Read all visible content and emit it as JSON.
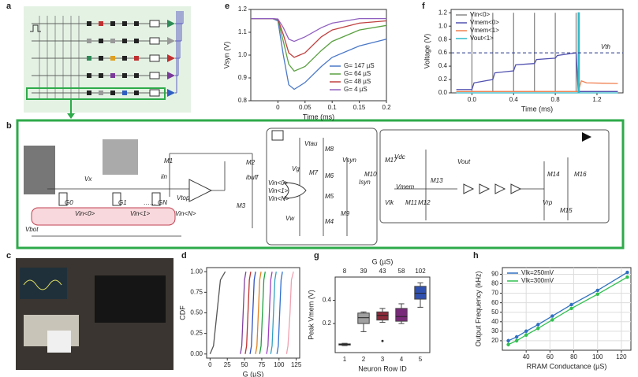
{
  "panels": [
    "a",
    "b",
    "c",
    "d",
    "e",
    "f",
    "g",
    "h"
  ],
  "circuit_labels": [
    "M1",
    "M2",
    "M3",
    "iin",
    "ibuff",
    "Vx",
    "Vtop",
    "Vbot",
    "G0",
    "G1",
    "GN",
    "Vin<0>",
    "Vin<1>",
    "Vin<N>",
    "……",
    "Vin<0>",
    "Vin<1>",
    "Vin<N>",
    "Vtau",
    "Vg",
    "Vsyn",
    "Isyn",
    "Vw",
    "M8",
    "M7",
    "M6",
    "M5",
    "M4",
    "M9",
    "M10",
    "Vdc",
    "M17",
    "Vmem",
    "M13",
    "M11",
    "M12",
    "Vlk",
    "Vout",
    "M14",
    "M16",
    "M15",
    "Vrp"
  ],
  "chart_data": [
    {
      "type": "line",
      "xlabel": "Time (ms)",
      "ylabel": "Vsyn (V)",
      "legend": "lower right",
      "xlim": [
        -0.05,
        0.2
      ],
      "xticks": [
        0,
        0.05,
        0.1,
        0.15,
        0.2
      ],
      "ylim": [
        0.8,
        1.2
      ],
      "yticks": [
        0.8,
        0.9,
        {
          "value": 1,
          "label": "1.0"
        },
        1.1,
        1.2
      ],
      "x": [
        -0.05,
        -0.03,
        -0.01,
        0,
        0.01,
        0.02,
        0.03,
        0.05,
        0.08,
        0.1,
        0.15,
        0.2
      ],
      "series": [
        {
          "name": "G= 147 µS",
          "color": "#4a78c8",
          "values": [
            1.16,
            1.16,
            1.16,
            1.15,
            1.0,
            0.87,
            0.85,
            0.88,
            0.95,
            0.99,
            1.04,
            1.07
          ]
        },
        {
          "name": "G= 64 µS",
          "color": "#5aa040",
          "values": [
            1.16,
            1.16,
            1.16,
            1.155,
            1.06,
            0.96,
            0.93,
            0.95,
            1.02,
            1.06,
            1.11,
            1.13
          ]
        },
        {
          "name": "G= 48 µS",
          "color": "#c04040",
          "values": [
            1.16,
            1.16,
            1.16,
            1.157,
            1.09,
            1.01,
            0.99,
            1.01,
            1.08,
            1.11,
            1.14,
            1.15
          ]
        },
        {
          "name": "G= 4 µS",
          "color": "#9060c0",
          "values": [
            1.16,
            1.16,
            1.16,
            1.158,
            1.12,
            1.07,
            1.06,
            1.08,
            1.12,
            1.14,
            1.16,
            1.16
          ]
        }
      ]
    },
    {
      "type": "line",
      "xlabel": "Time (ms)",
      "ylabel": "Voltage (V)",
      "legend": "upper left",
      "xlim": [
        -0.2,
        1.45
      ],
      "xticks": [
        {
          "value": 0,
          "label": "0.0"
        },
        0.4,
        0.8,
        1.2
      ],
      "ylim": [
        0,
        1.25
      ],
      "yticks": [
        {
          "value": 0,
          "label": "0.0"
        },
        0.2,
        0.4,
        0.6,
        0.8,
        {
          "value": 1,
          "label": "1.0"
        },
        1.2
      ],
      "threshold": 0.6,
      "threshold_label": "Vth",
      "series": [
        {
          "name": "Vin<0>",
          "color": "#888888",
          "x": [
            -0.15,
            0,
            0,
            0,
            0.2,
            0.2,
            0.2,
            0.4,
            0.4,
            0.4,
            0.6,
            0.6,
            0.6,
            0.8,
            0.8,
            0.8,
            1.0,
            1.0,
            1.0,
            1.4
          ],
          "values": [
            0.02,
            0.02,
            1.2,
            0.02,
            0.02,
            1.2,
            0.02,
            0.02,
            1.2,
            0.02,
            0.02,
            1.2,
            0.02,
            0.02,
            1.2,
            0.02,
            0.02,
            1.2,
            0.02,
            0.02
          ]
        },
        {
          "name": "Vmem<0>",
          "color": "#5050b0",
          "x": [
            -0.15,
            0,
            0.02,
            0.2,
            0.22,
            0.4,
            0.42,
            0.6,
            0.62,
            0.8,
            0.82,
            1.0,
            1.02,
            1.05,
            1.4
          ],
          "values": [
            0.05,
            0.05,
            0.15,
            0.2,
            0.3,
            0.33,
            0.42,
            0.44,
            0.5,
            0.52,
            0.56,
            0.6,
            0.02,
            0.02,
            0.02
          ]
        },
        {
          "name": "Vmem<1>",
          "color": "#f08050",
          "x": [
            -0.15,
            1.02,
            1.05,
            1.1,
            1.4
          ],
          "values": [
            0.02,
            0.02,
            0.18,
            0.15,
            0.14
          ]
        },
        {
          "name": "Vout<1>",
          "color": "#30b8c8",
          "x": [
            -0.15,
            1.02,
            1.02,
            1.03,
            1.03,
            1.4
          ],
          "values": [
            0,
            0,
            1.2,
            1.2,
            0,
            0
          ]
        }
      ]
    },
    {
      "type": "line",
      "xlabel": "G (µS)",
      "ylabel": "CDF",
      "xlim": [
        -5,
        130
      ],
      "xticks": [
        0,
        25,
        50,
        75,
        100,
        125
      ],
      "ylim": [
        -0.05,
        1.05
      ],
      "yticks": [
        {
          "value": 0,
          "label": "0.00"
        },
        {
          "value": 0.25,
          "label": "0.25"
        },
        {
          "value": 0.5,
          "label": "0.50"
        },
        {
          "value": 0.75,
          "label": "0.75"
        },
        {
          "value": 1,
          "label": "1.00"
        }
      ],
      "series": [
        {
          "color": "#555555",
          "x": [
            0,
            5,
            10,
            15,
            22
          ],
          "values": [
            0,
            0.1,
            0.5,
            0.9,
            1
          ]
        },
        {
          "color": "#8040a0",
          "x": [
            44,
            46,
            48,
            50,
            52
          ],
          "values": [
            0,
            0.1,
            0.5,
            0.9,
            1
          ]
        },
        {
          "color": "#c03030",
          "x": [
            51,
            53,
            55,
            57,
            59
          ],
          "values": [
            0,
            0.1,
            0.5,
            0.9,
            1
          ]
        },
        {
          "color": "#3050c0",
          "x": [
            58,
            60,
            62,
            64,
            66
          ],
          "values": [
            0,
            0.1,
            0.5,
            0.9,
            1
          ]
        },
        {
          "color": "#e08020",
          "x": [
            66,
            68,
            70,
            72,
            74
          ],
          "values": [
            0,
            0.1,
            0.5,
            0.9,
            1
          ]
        },
        {
          "color": "#20a040",
          "x": [
            72,
            74,
            76,
            78,
            80
          ],
          "values": [
            0,
            0.1,
            0.5,
            0.9,
            1
          ]
        },
        {
          "color": "#a040c0",
          "x": [
            82,
            84,
            86,
            88,
            90
          ],
          "values": [
            0,
            0.1,
            0.5,
            0.9,
            1
          ]
        },
        {
          "color": "#30a0c0",
          "x": [
            88,
            90,
            92,
            94,
            96
          ],
          "values": [
            0,
            0.1,
            0.5,
            0.9,
            1
          ]
        },
        {
          "color": "#3070d0",
          "x": [
            97,
            99,
            101,
            103,
            105
          ],
          "values": [
            0,
            0.1,
            0.5,
            0.9,
            1
          ]
        },
        {
          "color": "#f0a0b0",
          "x": [
            111,
            113,
            116,
            118,
            121
          ],
          "values": [
            0,
            0.1,
            0.5,
            0.9,
            1
          ]
        }
      ]
    },
    {
      "type": "box",
      "xlabel": "Neuron Row ID",
      "ylabel": "Peak Vmem (V)",
      "top_label": "G (µS)",
      "categories": [
        "1",
        "2",
        "3",
        "4",
        "5"
      ],
      "top_ticks": [
        8,
        39,
        43,
        58,
        102
      ],
      "ylim": [
        -0.05,
        0.6
      ],
      "yticks": [
        0.2,
        0.4
      ],
      "boxes": [
        {
          "color": "#222222",
          "whislo": 0.01,
          "q1": 0.015,
          "med": 0.02,
          "q3": 0.025,
          "whishi": 0.03,
          "fliers": []
        },
        {
          "color": "#a0a0a0",
          "whislo": 0.13,
          "q1": 0.2,
          "med": 0.25,
          "q3": 0.29,
          "whishi": 0.3,
          "fliers": []
        },
        {
          "color": "#8b2a3a",
          "whislo": 0.21,
          "q1": 0.23,
          "med": 0.27,
          "q3": 0.3,
          "whishi": 0.33,
          "fliers": [
            0.05
          ]
        },
        {
          "color": "#7a2a7a",
          "whislo": 0.2,
          "q1": 0.22,
          "med": 0.26,
          "q3": 0.33,
          "whishi": 0.37,
          "fliers": []
        },
        {
          "color": "#3050b0",
          "whislo": 0.34,
          "q1": 0.41,
          "med": 0.46,
          "q3": 0.52,
          "whishi": 0.55,
          "fliers": []
        }
      ]
    },
    {
      "type": "line",
      "markers": true,
      "grid": true,
      "xlabel": "RRAM Conductance (µS)",
      "ylabel": "Output Frequency (kHz)",
      "legend": "upper left",
      "xlim": [
        20,
        128
      ],
      "xticks": [
        40,
        60,
        80,
        100,
        120
      ],
      "ylim": [
        10,
        97
      ],
      "yticks": [
        20,
        30,
        40,
        50,
        60,
        70,
        80,
        90
      ],
      "x": [
        25,
        32,
        40,
        50,
        62,
        78,
        100,
        125
      ],
      "series": [
        {
          "name": "Vlk=250mV",
          "color": "#2f6fc0",
          "values": [
            20,
            24,
            30,
            37,
            46,
            58,
            73,
            92
          ],
          "errors": [
            2,
            2,
            2,
            2,
            1.5,
            1.5,
            1.5,
            1.5
          ]
        },
        {
          "name": "Vlk=300mV",
          "color": "#30c050",
          "values": [
            16,
            20,
            26,
            33,
            42,
            54,
            69,
            87
          ],
          "errors": [
            2,
            2,
            2,
            2,
            1.5,
            1.5,
            1.5,
            1.5
          ]
        }
      ]
    }
  ]
}
